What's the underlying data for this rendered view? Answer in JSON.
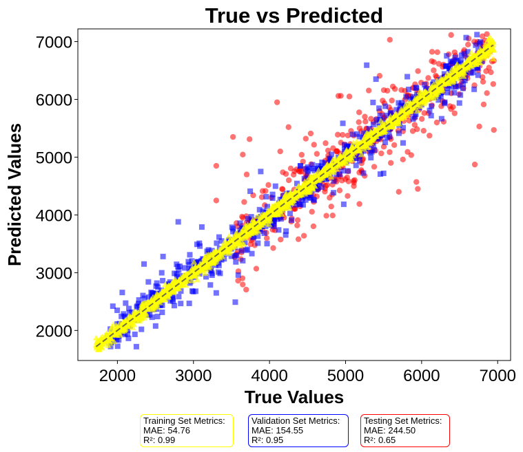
{
  "chart_data": {
    "type": "scatter",
    "title": "True vs Predicted",
    "xlabel": "True Values",
    "ylabel": "Predicted Values",
    "xlim": [
      1480,
      7170
    ],
    "ylim": [
      1480,
      7220
    ],
    "x_ticks": [
      2000,
      3000,
      4000,
      5000,
      6000,
      7000
    ],
    "y_ticks": [
      2000,
      3000,
      4000,
      5000,
      6000,
      7000
    ],
    "grid": false,
    "reference_line": {
      "label": "y = x",
      "from": [
        1720,
        1720
      ],
      "to": [
        6940,
        6940
      ],
      "color": "#555555",
      "style": "dashed"
    },
    "series": [
      {
        "key": "test",
        "color": "#ff0000",
        "marker": "circle",
        "alpha": 0.55,
        "range": [
          3500,
          6950
        ],
        "count": 420,
        "noise_sd": 330,
        "outlier_frac": 0.1,
        "seed": 11,
        "values": [
          [
            3300,
            4850
          ],
          [
            3520,
            5350
          ],
          [
            4100,
            5950
          ],
          [
            4250,
            5520
          ],
          [
            5050,
            6050
          ],
          [
            5550,
            6150
          ],
          [
            6200,
            5600
          ],
          [
            6950,
            5470
          ],
          [
            5950,
            4450
          ],
          [
            5700,
            4400
          ],
          [
            3650,
            3950
          ],
          [
            3300,
            4250
          ],
          [
            4380,
            3580
          ],
          [
            3700,
            4700
          ],
          [
            6450,
            6400
          ]
        ]
      },
      {
        "key": "validation",
        "color": "#0000ff",
        "marker": "square",
        "alpha": 0.55,
        "range": [
          1850,
          6800
        ],
        "count": 700,
        "noise_sd": 170,
        "outlier_frac": 0.06,
        "seed": 29,
        "values": [
          [
            1940,
            2420
          ],
          [
            2100,
            1930
          ],
          [
            2800,
            3880
          ],
          [
            3550,
            2490
          ],
          [
            3300,
            2650
          ],
          [
            5400,
            6350
          ],
          [
            6280,
            6260
          ],
          [
            6300,
            5930
          ],
          [
            6580,
            6470
          ],
          [
            5500,
            4720
          ],
          [
            2600,
            3280
          ],
          [
            2350,
            3150
          ]
        ]
      },
      {
        "key": "train",
        "color": "#ffff00",
        "marker": "triangle",
        "alpha": 0.65,
        "range": [
          1720,
          6950
        ],
        "count": 1900,
        "noise_sd": 55,
        "outlier_frac": 0.0,
        "seed": 47,
        "values": [
          [
            1720,
            1870
          ],
          [
            6940,
            6700
          ],
          [
            4000,
            4000
          ],
          [
            5000,
            5000
          ]
        ]
      }
    ]
  },
  "metrics": {
    "train": {
      "title": "Training Set Metrics:",
      "mae": "MAE: 54.76",
      "r2": "R²: 0.99",
      "border": "#ffff00"
    },
    "validation": {
      "title": "Validation Set Metrics:",
      "mae": "MAE: 154.55",
      "r2": "R²: 0.95",
      "border": "#0000ff"
    },
    "test": {
      "title": "Testing Set Metrics:",
      "mae": "MAE: 244.50",
      "r2": "R²: 0.65",
      "border": "#ff0000"
    }
  }
}
